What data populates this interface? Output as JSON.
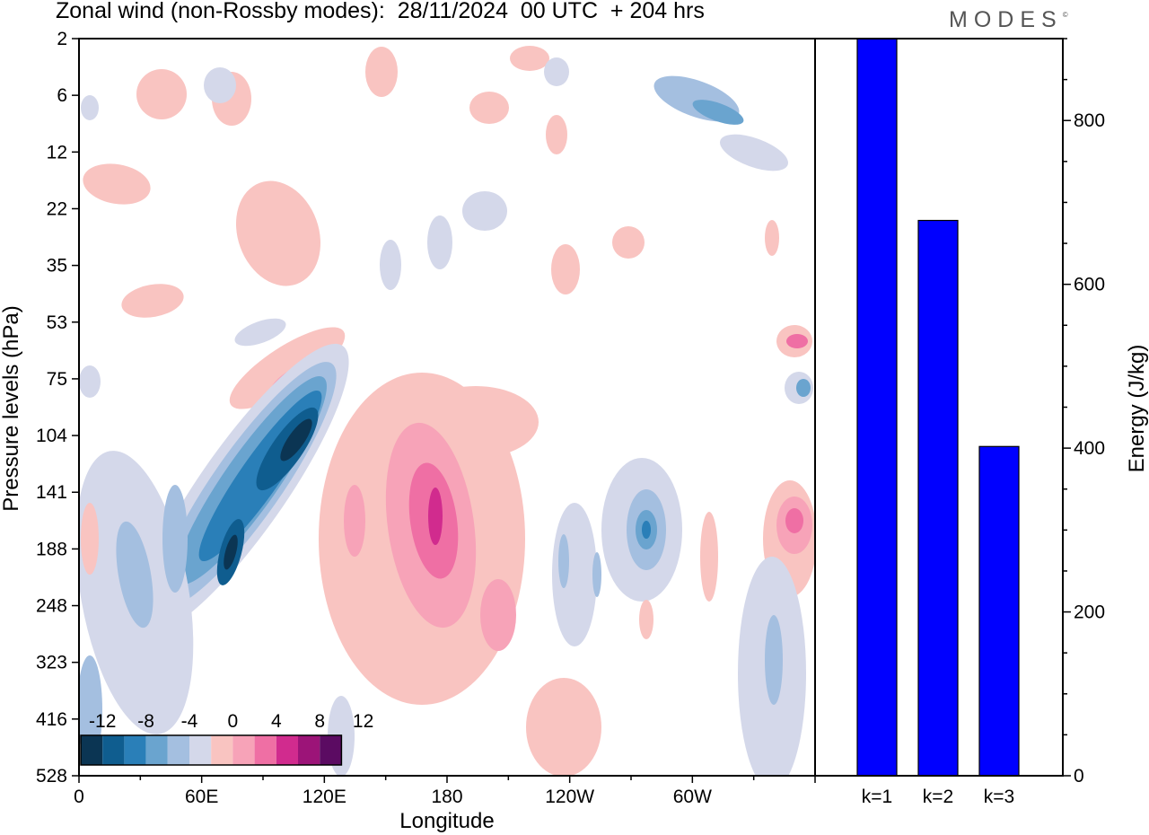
{
  "header": {
    "title": "Zonal wind (non-Rossby modes):  28/11/2024  00 UTC  + 204 hrs",
    "brand": "MODES"
  },
  "colors": {
    "negative_scale": [
      "#0b3553",
      "#0f5d8f",
      "#2a7fb8",
      "#6aa4cf",
      "#a4bfe0",
      "#d4d8ea"
    ],
    "positive_scale": [
      "#f9c4c1",
      "#f7a3b8",
      "#ef6fa4",
      "#d12b8e",
      "#9c1478",
      "#5b0b62"
    ],
    "bar_fill": "#0000ff",
    "frame": "#000000"
  },
  "chart_data": [
    {
      "type": "heatmap",
      "xlabel": "Longitude",
      "ylabel": "Pressure levels (hPa)",
      "x_ticks": [
        "0",
        "60E",
        "120E",
        "180",
        "120W",
        "60W"
      ],
      "y_ticks": [
        "2",
        "6",
        "12",
        "22",
        "35",
        "53",
        "75",
        "104",
        "141",
        "188",
        "248",
        "323",
        "416",
        "528"
      ],
      "colorbar": {
        "labels": [
          "-12",
          "-8",
          "-4",
          "0",
          "4",
          "8",
          "12"
        ]
      },
      "features": [
        {
          "name": "easterly jet core",
          "lon": 70,
          "level": "188",
          "value": -12
        },
        {
          "name": "easterly tilted band",
          "lon": 105,
          "level": "104",
          "value": -12
        },
        {
          "name": "westerly core",
          "lon": 175,
          "level": "141",
          "value": 10
        },
        {
          "name": "easterly core",
          "lon": 245,
          "level": "188",
          "value": -8
        },
        {
          "name": "westerly core",
          "lon": 352,
          "level": "141",
          "value": 8
        }
      ]
    },
    {
      "type": "bar",
      "categories": [
        "k=1",
        "k=2",
        "k=3"
      ],
      "values": [
        900,
        678,
        402
      ],
      "ylabel": "Energy (J/kg)",
      "ylim": [
        0,
        900
      ],
      "y_ticks": [
        "0",
        "200",
        "400",
        "600",
        "800"
      ]
    }
  ]
}
